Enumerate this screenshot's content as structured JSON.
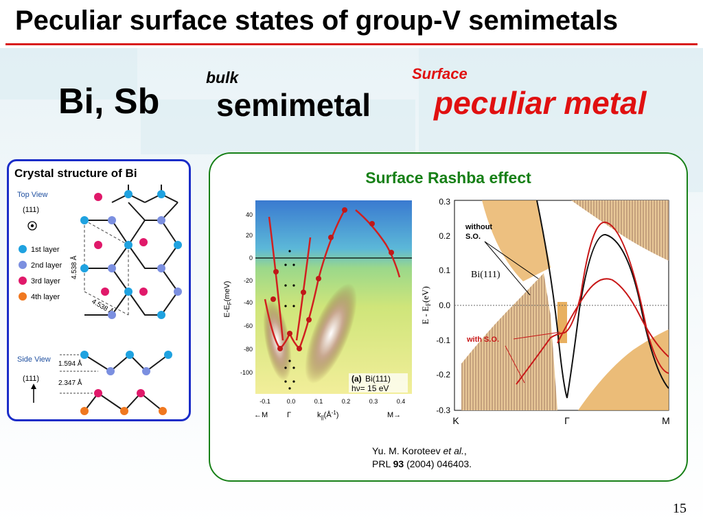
{
  "title": "Peculiar surface states of group-V semimetals",
  "header": {
    "elements": "Bi, Sb",
    "bulk_label": "bulk",
    "bulk_value": "semimetal",
    "surface_label": "Surface",
    "surface_value": "peculiar metal"
  },
  "crystal": {
    "title": "Crystal structure of Bi",
    "top_view": "Top View",
    "side_view": "Side View",
    "direction": "(111)",
    "distance_a": "4.538 Å",
    "distance_b": "4.538 Å",
    "distance_c": "1.594 Å",
    "distance_d": "2.347 Å",
    "legend": [
      "1st layer",
      "2nd layer",
      "3rd layer",
      "4th layer"
    ],
    "colors": {
      "layer1": "#1fa2e0",
      "layer2": "#7b8fe0",
      "layer3": "#e0196a",
      "layer4": "#f07820"
    }
  },
  "rashba": {
    "title": "Surface Rashba effect",
    "arpes": {
      "ylabel": "E-E",
      "ylabel_sub": "F",
      "ylabel_unit": "(meV)",
      "yticks": [
        "40",
        "20",
        "0",
        "-20",
        "-40",
        "-60",
        "-80",
        "-100"
      ],
      "xticks": [
        "-0.1",
        "0.0",
        "0.1",
        "0.2",
        "0.3",
        "0.4"
      ],
      "xlabel": "k",
      "xlabel_sub": "||",
      "xlabel_unit": "(Å",
      "xlabel_exp": "-1",
      "xlabel_close": ")",
      "left_point": "←M",
      "gamma_point": "Γ",
      "right_point": "M→",
      "panel_label": "(a)",
      "panel_material": "Bi(111)",
      "photon_energy": "hν= 15 eV"
    },
    "calc": {
      "ylabel": "E - E",
      "ylabel_sub": "F",
      "ylabel_unit": "(eV)",
      "yticks": [
        "0.3",
        "0.2",
        "0.1",
        "0.0",
        "-0.1",
        "-0.2",
        "-0.3"
      ],
      "xticks": [
        "K",
        "Γ",
        "M"
      ],
      "material": "Bi(111)",
      "without_so_line1": "without",
      "without_so_line2": "S.O.",
      "with_so": "with S.O."
    },
    "citation": {
      "authors": "Yu. M. Koroteev ",
      "etal": "et al.",
      "comma": ",",
      "journal": "PRL ",
      "volume": "93",
      "rest": " (2004) 046403."
    }
  },
  "page_number": "15"
}
